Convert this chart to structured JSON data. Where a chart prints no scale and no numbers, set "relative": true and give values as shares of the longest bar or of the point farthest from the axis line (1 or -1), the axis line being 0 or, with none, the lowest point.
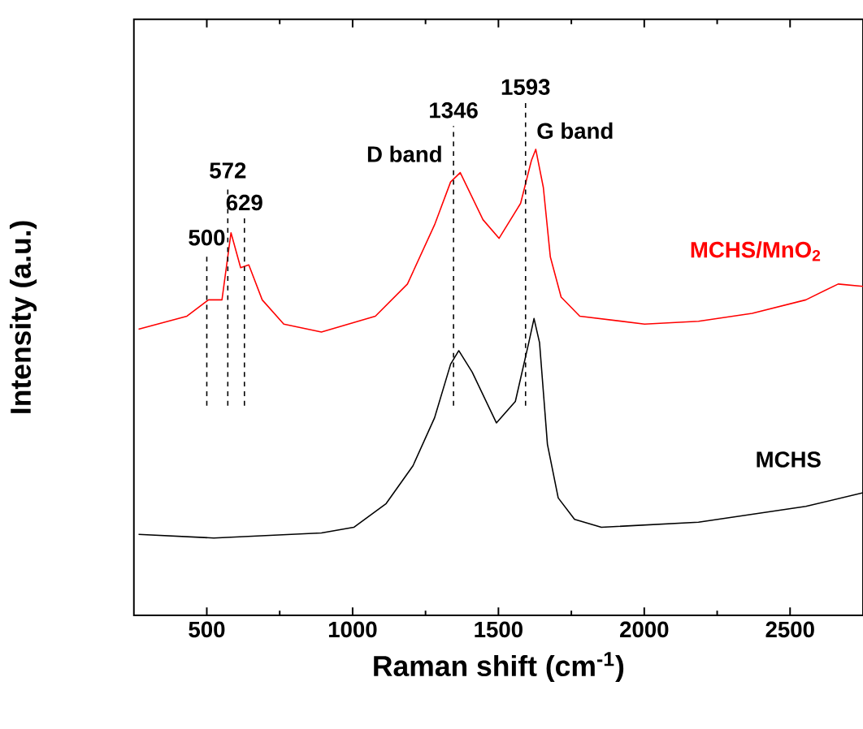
{
  "chart_data": {
    "type": "line",
    "relative": true,
    "xlabel": "Raman shift (cm$^{-1}$)",
    "ylabel": "Intensity (a.u.)",
    "xlim": [
      250,
      2750
    ],
    "xticks": [
      500,
      1000,
      1500,
      2000,
      2500
    ],
    "series": [
      {
        "name": "MCHS/MnO$_{2}$",
        "color": "#ff0000",
        "x": [
          266,
          432,
          506,
          552,
          583,
          616,
          644,
          690,
          764,
          893,
          1078,
          1188,
          1281,
          1336,
          1369,
          1447,
          1502,
          1576,
          1613,
          1628,
          1654,
          1678,
          1715,
          1779,
          2001,
          2186,
          2370,
          2554,
          2665,
          2750
        ],
        "values": [
          0.614,
          0.642,
          0.677,
          0.677,
          0.821,
          0.746,
          0.752,
          0.677,
          0.625,
          0.608,
          0.642,
          0.711,
          0.838,
          0.93,
          0.95,
          0.849,
          0.809,
          0.884,
          0.976,
          1.0,
          0.918,
          0.769,
          0.683,
          0.642,
          0.625,
          0.631,
          0.648,
          0.677,
          0.711,
          0.706
        ]
      },
      {
        "name": "MCHS",
        "color": "#000000",
        "x": [
          266,
          524,
          893,
          1004,
          1115,
          1207,
          1281,
          1336,
          1364,
          1410,
          1493,
          1558,
          1604,
          1622,
          1641,
          1668,
          1705,
          1761,
          1853,
          2186,
          2554,
          2750
        ],
        "values": [
          0.174,
          0.166,
          0.177,
          0.189,
          0.24,
          0.321,
          0.424,
          0.539,
          0.568,
          0.522,
          0.413,
          0.459,
          0.585,
          0.637,
          0.585,
          0.367,
          0.252,
          0.206,
          0.189,
          0.2,
          0.234,
          0.263
        ]
      }
    ],
    "ref_lines": [
      {
        "axis": "x",
        "value": 500,
        "label": "500",
        "line_style": "dashed"
      },
      {
        "axis": "x",
        "value": 572,
        "label": "572",
        "line_style": "dashed"
      },
      {
        "axis": "x",
        "value": 629,
        "label": "629",
        "line_style": "dashed"
      },
      {
        "axis": "x",
        "value": 1346,
        "label": "1346",
        "line_style": "dashed"
      },
      {
        "axis": "x",
        "value": 1593,
        "label": "1593",
        "line_style": "dashed"
      }
    ],
    "annotations": [
      "D band",
      "G band"
    ]
  }
}
